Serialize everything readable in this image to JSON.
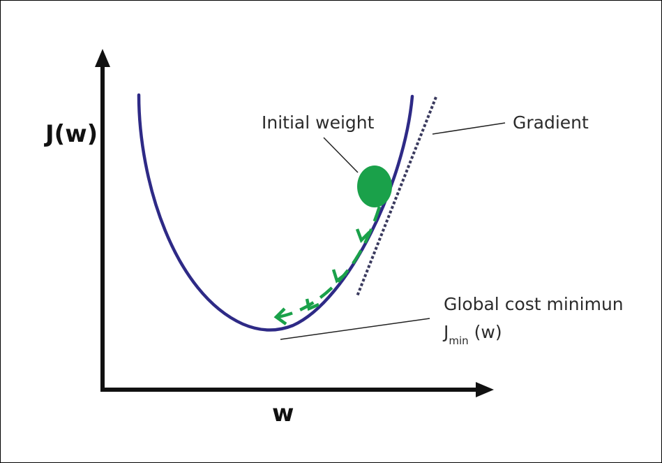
{
  "labels": {
    "y_axis": "J(w)",
    "x_axis": "w",
    "initial_weight": "Initial weight",
    "gradient": "Gradient",
    "global_min": "Global cost minimun",
    "jmin_base": "J",
    "jmin_sub": "min",
    "jmin_rest": " (w)"
  },
  "colors": {
    "curve": "#2e2a86",
    "ball": "#1aa14a",
    "arrows": "#1aa14a",
    "gradient_line": "#3a3a5e",
    "axes": "#111111",
    "leaders": "#222222"
  }
}
